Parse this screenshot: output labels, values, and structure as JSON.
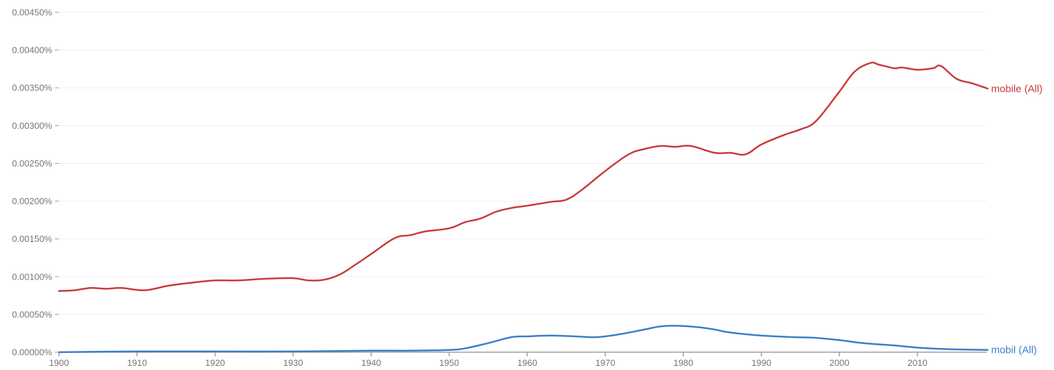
{
  "chart_data": {
    "type": "line",
    "title": "",
    "xlabel": "",
    "ylabel": "",
    "xlim": [
      1900,
      2019
    ],
    "ylim": [
      0,
      0.0045
    ],
    "y_unit": "%",
    "grid": true,
    "legend_position": "inline-right",
    "x_ticks": [
      1900,
      1910,
      1920,
      1930,
      1940,
      1950,
      1960,
      1970,
      1980,
      1990,
      2000,
      2010
    ],
    "x_tick_labels": [
      "1900",
      "1910",
      "1920",
      "1930",
      "1940",
      "1950",
      "1960",
      "1970",
      "1980",
      "1990",
      "2000",
      "2010"
    ],
    "y_ticks": [
      0,
      0.0005,
      0.001,
      0.0015,
      0.002,
      0.0025,
      0.003,
      0.0035,
      0.004,
      0.0045
    ],
    "y_tick_labels": [
      "0.00000%",
      "0.00050%",
      "0.00100%",
      "0.00150%",
      "0.00200%",
      "0.00250%",
      "0.00300%",
      "0.00350%",
      "0.00400%",
      "0.00450%"
    ],
    "series": [
      {
        "name": "mobile (All)",
        "color": "#c83a3a",
        "x": [
          1900,
          1902,
          1904,
          1906,
          1908,
          1911,
          1914,
          1917,
          1920,
          1923,
          1926,
          1930,
          1932,
          1934,
          1936,
          1938,
          1940,
          1943,
          1945,
          1947,
          1950,
          1952,
          1954,
          1956,
          1958,
          1960,
          1963,
          1965,
          1967,
          1970,
          1973,
          1975,
          1977,
          1979,
          1981,
          1984,
          1986,
          1988,
          1990,
          1993,
          1995,
          1997,
          2000,
          2002,
          2004,
          2005,
          2007,
          2008,
          2010,
          2012,
          2013,
          2015,
          2017,
          2019
        ],
        "values": [
          0.00081,
          0.00082,
          0.00085,
          0.00084,
          0.00085,
          0.00082,
          0.00088,
          0.00092,
          0.00095,
          0.00095,
          0.00097,
          0.00098,
          0.00095,
          0.00096,
          0.00103,
          0.00116,
          0.0013,
          0.00151,
          0.00155,
          0.0016,
          0.00164,
          0.00172,
          0.00177,
          0.00186,
          0.00191,
          0.00194,
          0.00199,
          0.00202,
          0.00215,
          0.0024,
          0.00262,
          0.00269,
          0.00273,
          0.00272,
          0.00273,
          0.00264,
          0.00264,
          0.00262,
          0.00275,
          0.00288,
          0.00295,
          0.00306,
          0.00345,
          0.00372,
          0.00383,
          0.00381,
          0.00376,
          0.00377,
          0.00374,
          0.00376,
          0.00379,
          0.00362,
          0.00356,
          0.00349
        ]
      },
      {
        "name": "mobil (All)",
        "color": "#3a7ec8",
        "x": [
          1900,
          1910,
          1920,
          1930,
          1940,
          1945,
          1950,
          1952,
          1955,
          1958,
          1960,
          1963,
          1966,
          1969,
          1972,
          1975,
          1977,
          1979,
          1982,
          1984,
          1986,
          1990,
          1994,
          1997,
          2000,
          2003,
          2007,
          2010,
          2014,
          2019
        ],
        "values": [
          0.0,
          1e-05,
          1e-05,
          1e-05,
          2e-05,
          2e-05,
          3e-05,
          5e-05,
          0.00012,
          0.0002,
          0.00021,
          0.00022,
          0.00021,
          0.0002,
          0.00024,
          0.0003,
          0.00034,
          0.00035,
          0.00033,
          0.0003,
          0.00026,
          0.00022,
          0.0002,
          0.00019,
          0.00016,
          0.00012,
          9e-05,
          6e-05,
          4e-05,
          3e-05
        ]
      }
    ]
  }
}
